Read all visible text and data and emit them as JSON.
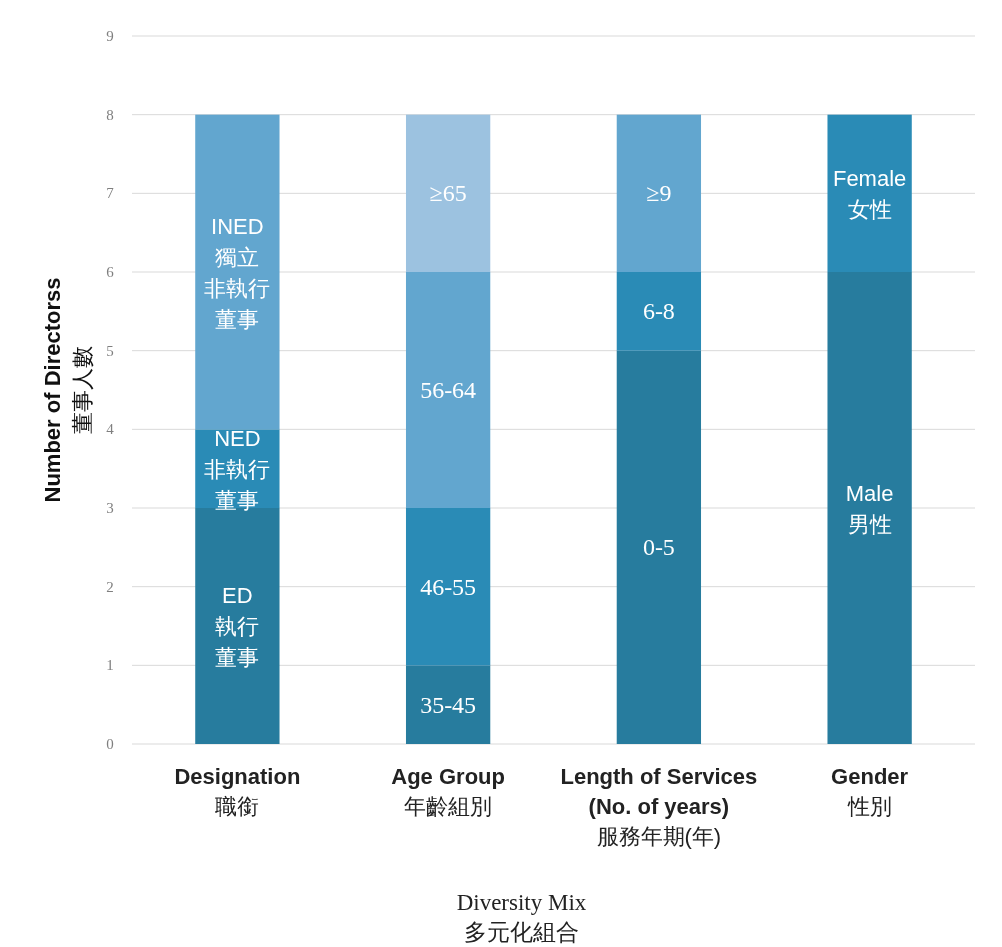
{
  "chart_data": {
    "type": "bar",
    "stacked": true,
    "categories": [
      "**Designation**\n職銜",
      "**Age Group**\n年齡組別",
      "**Length of Services**\n**(No. of years)**\n服務年期(年)",
      "**Gender**\n性別"
    ],
    "series": [
      {
        "color": "#277c9e",
        "values": [
          3,
          1,
          5,
          6
        ],
        "value_labels": [
          "ED\n執行董事",
          "35-45",
          "0-5",
          "Male\n男性"
        ]
      },
      {
        "color": "#2a8bb6",
        "values": [
          1,
          2,
          1,
          2
        ],
        "value_labels": [
          "NED\n非執行董事",
          "46-55",
          "6-8",
          "Female\n女性"
        ]
      },
      {
        "color": "#62a6cf",
        "values": [
          4,
          3,
          2,
          null
        ],
        "value_labels": [
          "INED\n獨立非執行董事",
          "56-64",
          "≥9",
          null
        ]
      },
      {
        "color": "#9cc2e0",
        "values": [
          null,
          2,
          null,
          null
        ],
        "value_labels": [
          null,
          "≥65",
          null,
          null
        ]
      }
    ],
    "xlabel": "Diversity Mix\n多元化組合",
    "ylabel": "**Number of Directorss**\n董事人數",
    "ylim": [
      0,
      9
    ],
    "yticks": [
      0,
      1,
      2,
      3,
      4,
      5,
      6,
      7,
      8,
      9
    ],
    "grid": "y"
  }
}
